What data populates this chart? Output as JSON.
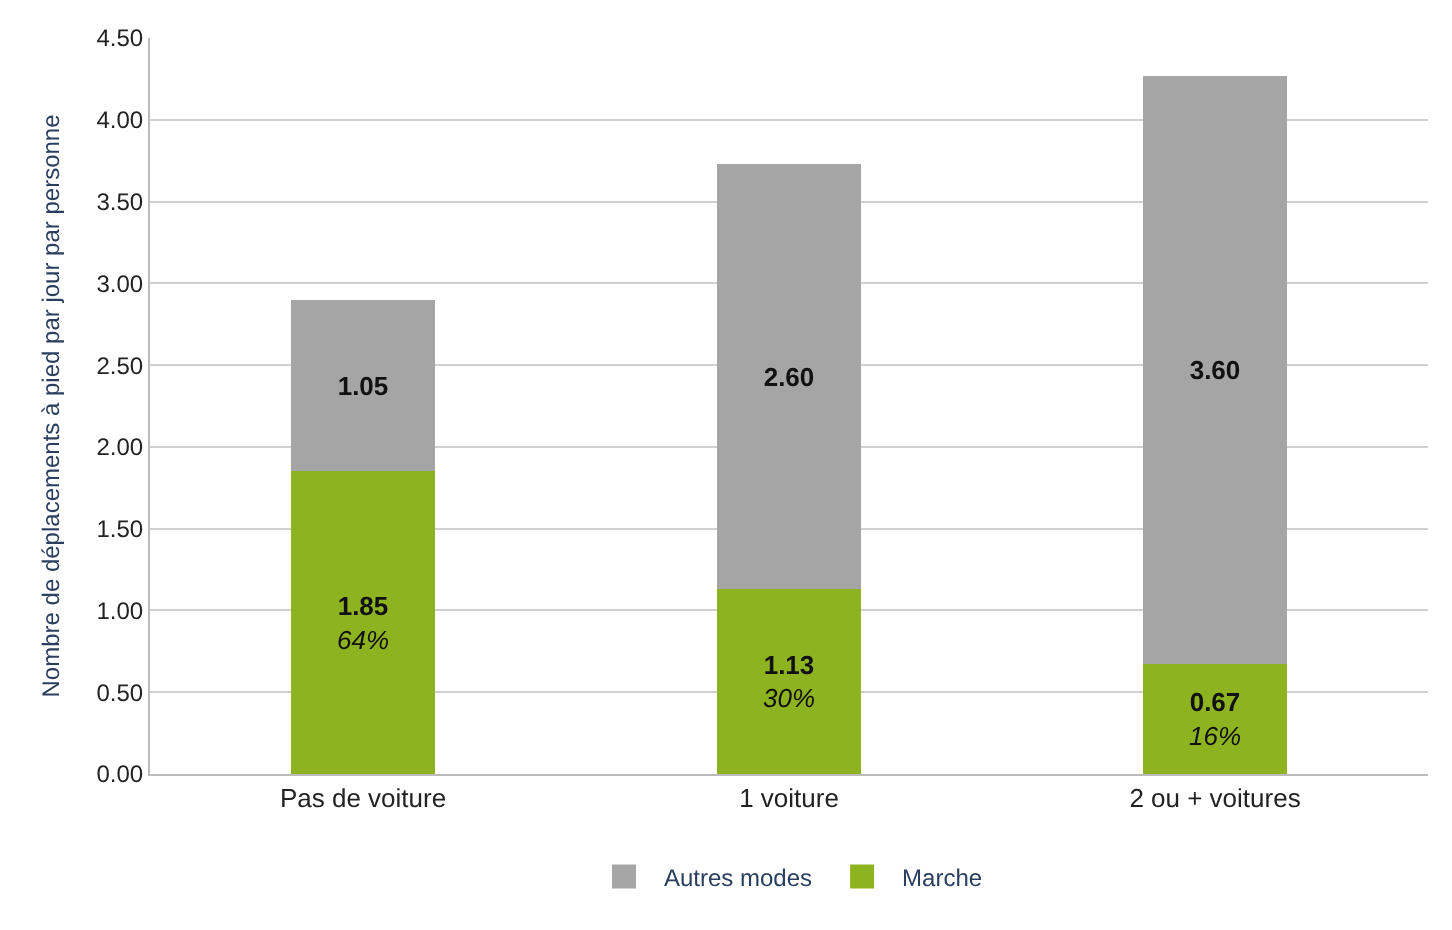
{
  "chart_data": {
    "type": "bar",
    "stacked": true,
    "ylabel": "Nombre de déplacements à pied par jour par personne",
    "categories": [
      "Pas de voiture",
      "1 voiture",
      "2 ou + voitures"
    ],
    "series": [
      {
        "name": "Marche",
        "color": "#8db320",
        "values": [
          1.85,
          1.13,
          0.67
        ],
        "value_labels": [
          "1.85\n64%",
          "1.13\n30%",
          "0.67\n16%"
        ]
      },
      {
        "name": "Autres modes",
        "color": "#a5a5a5",
        "values": [
          1.05,
          2.6,
          3.6
        ],
        "value_labels": [
          "1.05",
          "2.60",
          "3.60"
        ]
      }
    ],
    "ylim": [
      0,
      4.5
    ],
    "yticks": [
      {
        "value": 0,
        "label": "0.00"
      },
      {
        "value": 0.5,
        "label": "0.50"
      },
      {
        "value": 1,
        "label": "1.00"
      },
      {
        "value": 1.5,
        "label": "1.50"
      },
      {
        "value": 2,
        "label": "2.00"
      },
      {
        "value": 2.5,
        "label": "2.50"
      },
      {
        "value": 3,
        "label": "3.00"
      },
      {
        "value": 3.5,
        "label": "3.50"
      },
      {
        "value": 4,
        "label": "4.00"
      },
      {
        "value": 4.5,
        "label": "4.50"
      }
    ],
    "grid": "y",
    "legend": "bottom"
  }
}
